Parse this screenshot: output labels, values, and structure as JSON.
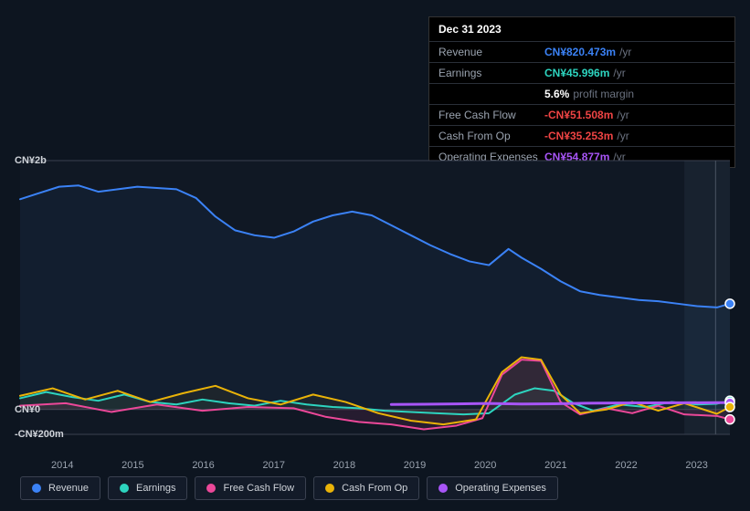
{
  "tooltip": {
    "date": "Dec 31 2023",
    "rows": [
      {
        "label": "Revenue",
        "value": "CN¥820.473m",
        "color": "#3b82f6",
        "suffix": "/yr"
      },
      {
        "label": "Earnings",
        "value": "CN¥45.996m",
        "color": "#2dd4bf",
        "suffix": "/yr"
      },
      {
        "label": "",
        "value": "5.6%",
        "color": "#ffffff",
        "suffix": "profit margin"
      },
      {
        "label": "Free Cash Flow",
        "value": "-CN¥51.508m",
        "color": "#ef4444",
        "suffix": "/yr"
      },
      {
        "label": "Cash From Op",
        "value": "-CN¥35.253m",
        "color": "#ef4444",
        "suffix": "/yr"
      },
      {
        "label": "Operating Expenses",
        "value": "CN¥54.877m",
        "color": "#a855f7",
        "suffix": "/yr"
      }
    ]
  },
  "chart": {
    "type": "area-line",
    "background_color": "#0d1520",
    "plot_bg": "#101824",
    "plot_bg_right": "#18222f",
    "axis_color": "#3a4150",
    "grid_color": "#2a2f38",
    "label_fontsize": 11,
    "label_color": "#9aa3af",
    "y_axis": {
      "ticks": [
        {
          "label": "CN¥2b",
          "value": 2000
        },
        {
          "label": "CN¥0",
          "value": 0
        },
        {
          "label": "-CN¥200m",
          "value": -200
        }
      ],
      "min": -200,
      "max": 2000
    },
    "x_axis": {
      "labels": [
        "2014",
        "2015",
        "2016",
        "2017",
        "2018",
        "2019",
        "2020",
        "2021",
        "2022",
        "2023"
      ],
      "min": 2013.3,
      "max": 2024.2
    },
    "vertical_marker_x": 2023.98,
    "series": [
      {
        "name": "Revenue",
        "color": "#3b82f6",
        "fill_opacity": 0.06,
        "width": 2,
        "points": [
          [
            2013.3,
            1690
          ],
          [
            2013.6,
            1740
          ],
          [
            2013.9,
            1790
          ],
          [
            2014.2,
            1800
          ],
          [
            2014.5,
            1750
          ],
          [
            2014.8,
            1770
          ],
          [
            2015.1,
            1790
          ],
          [
            2015.4,
            1780
          ],
          [
            2015.7,
            1770
          ],
          [
            2016.0,
            1700
          ],
          [
            2016.3,
            1550
          ],
          [
            2016.6,
            1440
          ],
          [
            2016.9,
            1400
          ],
          [
            2017.2,
            1380
          ],
          [
            2017.5,
            1430
          ],
          [
            2017.8,
            1510
          ],
          [
            2018.1,
            1560
          ],
          [
            2018.4,
            1590
          ],
          [
            2018.7,
            1560
          ],
          [
            2019.0,
            1480
          ],
          [
            2019.3,
            1400
          ],
          [
            2019.6,
            1320
          ],
          [
            2019.9,
            1250
          ],
          [
            2020.2,
            1190
          ],
          [
            2020.5,
            1160
          ],
          [
            2020.8,
            1290
          ],
          [
            2021.0,
            1220
          ],
          [
            2021.3,
            1130
          ],
          [
            2021.6,
            1030
          ],
          [
            2021.9,
            950
          ],
          [
            2022.2,
            920
          ],
          [
            2022.5,
            900
          ],
          [
            2022.8,
            880
          ],
          [
            2023.1,
            870
          ],
          [
            2023.4,
            850
          ],
          [
            2023.7,
            830
          ],
          [
            2024.0,
            820
          ],
          [
            2024.2,
            850
          ]
        ]
      },
      {
        "name": "Earnings",
        "color": "#2dd4bf",
        "fill_opacity": 0.05,
        "width": 2,
        "points": [
          [
            2013.3,
            90
          ],
          [
            2013.7,
            140
          ],
          [
            2014.1,
            100
          ],
          [
            2014.5,
            70
          ],
          [
            2014.9,
            120
          ],
          [
            2015.3,
            60
          ],
          [
            2015.7,
            40
          ],
          [
            2016.1,
            80
          ],
          [
            2016.5,
            50
          ],
          [
            2016.9,
            30
          ],
          [
            2017.3,
            70
          ],
          [
            2017.7,
            40
          ],
          [
            2018.1,
            20
          ],
          [
            2018.5,
            10
          ],
          [
            2018.9,
            -10
          ],
          [
            2019.3,
            -20
          ],
          [
            2019.7,
            -30
          ],
          [
            2020.1,
            -40
          ],
          [
            2020.5,
            -30
          ],
          [
            2020.9,
            120
          ],
          [
            2021.2,
            170
          ],
          [
            2021.5,
            150
          ],
          [
            2021.8,
            50
          ],
          [
            2022.1,
            -10
          ],
          [
            2022.5,
            40
          ],
          [
            2022.9,
            20
          ],
          [
            2023.3,
            60
          ],
          [
            2023.7,
            40
          ],
          [
            2024.0,
            46
          ],
          [
            2024.2,
            70
          ]
        ]
      },
      {
        "name": "Free Cash Flow",
        "color": "#ec4899",
        "fill_opacity": 0.1,
        "width": 2,
        "points": [
          [
            2013.3,
            30
          ],
          [
            2014.0,
            50
          ],
          [
            2014.7,
            -20
          ],
          [
            2015.4,
            40
          ],
          [
            2016.1,
            -10
          ],
          [
            2016.8,
            20
          ],
          [
            2017.5,
            10
          ],
          [
            2018.0,
            -60
          ],
          [
            2018.5,
            -100
          ],
          [
            2019.0,
            -120
          ],
          [
            2019.5,
            -160
          ],
          [
            2020.0,
            -130
          ],
          [
            2020.4,
            -70
          ],
          [
            2020.7,
            280
          ],
          [
            2021.0,
            400
          ],
          [
            2021.3,
            390
          ],
          [
            2021.6,
            60
          ],
          [
            2021.9,
            -40
          ],
          [
            2022.3,
            10
          ],
          [
            2022.7,
            -30
          ],
          [
            2023.1,
            30
          ],
          [
            2023.5,
            -40
          ],
          [
            2024.0,
            -52
          ],
          [
            2024.2,
            -80
          ]
        ]
      },
      {
        "name": "Cash From Op",
        "color": "#eab308",
        "fill_opacity": 0.05,
        "width": 2,
        "points": [
          [
            2013.3,
            110
          ],
          [
            2013.8,
            170
          ],
          [
            2014.3,
            80
          ],
          [
            2014.8,
            150
          ],
          [
            2015.3,
            60
          ],
          [
            2015.8,
            130
          ],
          [
            2016.3,
            190
          ],
          [
            2016.8,
            90
          ],
          [
            2017.3,
            40
          ],
          [
            2017.8,
            120
          ],
          [
            2018.3,
            60
          ],
          [
            2018.8,
            -30
          ],
          [
            2019.3,
            -90
          ],
          [
            2019.8,
            -120
          ],
          [
            2020.3,
            -80
          ],
          [
            2020.7,
            300
          ],
          [
            2021.0,
            420
          ],
          [
            2021.3,
            400
          ],
          [
            2021.6,
            120
          ],
          [
            2021.9,
            -30
          ],
          [
            2022.3,
            0
          ],
          [
            2022.7,
            60
          ],
          [
            2023.1,
            -10
          ],
          [
            2023.5,
            50
          ],
          [
            2024.0,
            -35
          ],
          [
            2024.2,
            20
          ]
        ]
      },
      {
        "name": "Operating Expenses",
        "color": "#a855f7",
        "fill_opacity": 0.0,
        "width": 3,
        "points": [
          [
            2019.0,
            40
          ],
          [
            2019.5,
            42
          ],
          [
            2020.0,
            45
          ],
          [
            2020.5,
            48
          ],
          [
            2021.0,
            44
          ],
          [
            2021.5,
            46
          ],
          [
            2022.0,
            50
          ],
          [
            2022.5,
            52
          ],
          [
            2023.0,
            53
          ],
          [
            2023.5,
            54
          ],
          [
            2024.0,
            55
          ],
          [
            2024.2,
            55
          ]
        ]
      }
    ],
    "end_markers": [
      {
        "color": "#3b82f6",
        "x": 2024.2,
        "y": 850
      },
      {
        "color": "#2dd4bf",
        "x": 2024.2,
        "y": 70
      },
      {
        "color": "#a855f7",
        "x": 2024.2,
        "y": 55
      },
      {
        "color": "#eab308",
        "x": 2024.2,
        "y": 20
      },
      {
        "color": "#ec4899",
        "x": 2024.2,
        "y": -80
      }
    ]
  },
  "legend": [
    {
      "label": "Revenue",
      "color": "#3b82f6"
    },
    {
      "label": "Earnings",
      "color": "#2dd4bf"
    },
    {
      "label": "Free Cash Flow",
      "color": "#ec4899"
    },
    {
      "label": "Cash From Op",
      "color": "#eab308"
    },
    {
      "label": "Operating Expenses",
      "color": "#a855f7"
    }
  ]
}
